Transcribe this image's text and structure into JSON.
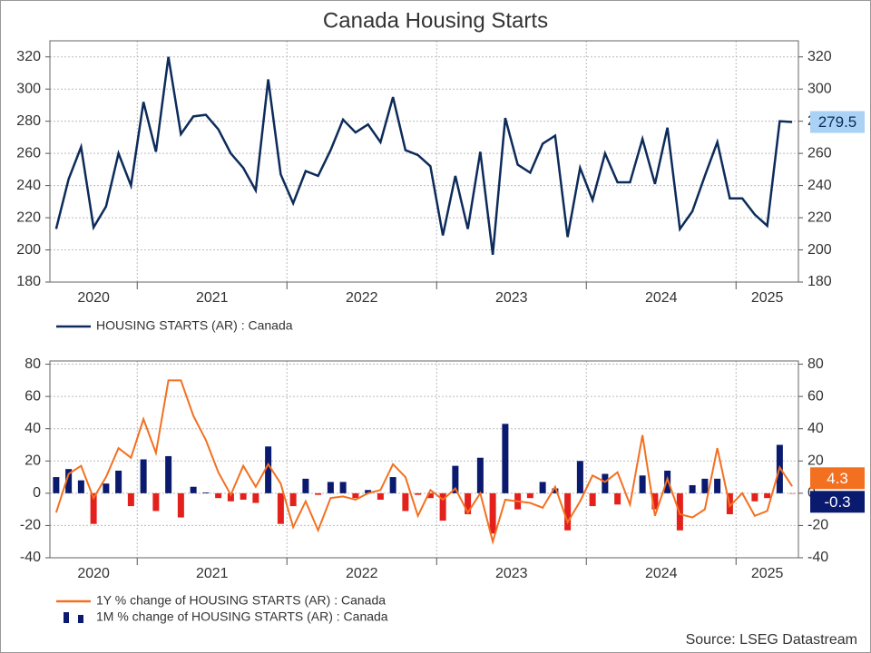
{
  "title": "Canada Housing Starts",
  "source": "Source: LSEG Datastream",
  "chart_data": [
    {
      "type": "line",
      "x": [
        "2020",
        "2020",
        "2020",
        "2020",
        "2020",
        "2020",
        "2020",
        "2021",
        "2021",
        "2021",
        "2021",
        "2021",
        "2021",
        "2021",
        "2021",
        "2021",
        "2021",
        "2021",
        "2021",
        "2022",
        "2022",
        "2022",
        "2022",
        "2022",
        "2022",
        "2022",
        "2022",
        "2022",
        "2022",
        "2022",
        "2022",
        "2023",
        "2023",
        "2023",
        "2023",
        "2023",
        "2023",
        "2023",
        "2023",
        "2023",
        "2023",
        "2023",
        "2023",
        "2024",
        "2024",
        "2024",
        "2024",
        "2024",
        "2024",
        "2024",
        "2024",
        "2024",
        "2024",
        "2024",
        "2024",
        "2025",
        "2025",
        "2025",
        "2025",
        "2025"
      ],
      "series": [
        {
          "name": "HOUSING STARTS (AR) : Canada",
          "color": "#0d2b5a",
          "label_bg": "#a9d2f5",
          "label_color": "#0d2b5a",
          "values": [
            213,
            244,
            264,
            214,
            227,
            260,
            240,
            292,
            261,
            320,
            272,
            283,
            284,
            275,
            260,
            251,
            237,
            306,
            247,
            229,
            249,
            246,
            262,
            281,
            273,
            278,
            267,
            295,
            262,
            259,
            252,
            209,
            246,
            213,
            261,
            197,
            282,
            253,
            248,
            266,
            271,
            208,
            251,
            231,
            260,
            242,
            242,
            269,
            241,
            276,
            213,
            224,
            246,
            267,
            232,
            232,
            222,
            215,
            280,
            279.5
          ]
        }
      ],
      "ylim": [
        180,
        330
      ],
      "yticks": [
        180,
        200,
        220,
        240,
        260,
        280,
        300,
        320
      ],
      "grid": true
    },
    {
      "type": "bar_line",
      "x": [
        "2020",
        "2020",
        "2020",
        "2020",
        "2020",
        "2020",
        "2020",
        "2021",
        "2021",
        "2021",
        "2021",
        "2021",
        "2021",
        "2021",
        "2021",
        "2021",
        "2021",
        "2021",
        "2021",
        "2022",
        "2022",
        "2022",
        "2022",
        "2022",
        "2022",
        "2022",
        "2022",
        "2022",
        "2022",
        "2022",
        "2022",
        "2023",
        "2023",
        "2023",
        "2023",
        "2023",
        "2023",
        "2023",
        "2023",
        "2023",
        "2023",
        "2023",
        "2023",
        "2024",
        "2024",
        "2024",
        "2024",
        "2024",
        "2024",
        "2024",
        "2024",
        "2024",
        "2024",
        "2024",
        "2024",
        "2025",
        "2025",
        "2025",
        "2025",
        "2025"
      ],
      "series": [
        {
          "name": "1Y % change of HOUSING STARTS (AR) : Canada",
          "kind": "line",
          "color": "#f37021",
          "label_bg": "#f37021",
          "label_color": "#ffffff",
          "values": [
            -12,
            12,
            17,
            -3,
            10,
            28,
            22,
            46,
            25,
            70,
            70,
            48,
            33,
            13,
            -1,
            17,
            4,
            18,
            6,
            -21,
            -5,
            -23,
            -3,
            -2,
            -4,
            0,
            2,
            18,
            10,
            -14,
            2,
            -4,
            3,
            -12,
            0,
            -30,
            -4,
            -5,
            -6,
            -9,
            4,
            -18,
            -5,
            11,
            7,
            13,
            -7,
            36,
            -14,
            9,
            -13,
            -15,
            -10,
            28,
            -8,
            0,
            -14,
            -11,
            16,
            4.3
          ]
        },
        {
          "name": "1M % change of HOUSING STARTS (AR) : Canada",
          "kind": "bar",
          "color": "#0a1a6e",
          "negative_color": "#e3201b",
          "label_bg": "#0a1a6e",
          "label_color": "#ffffff",
          "values": [
            10,
            15,
            8,
            -19,
            6,
            14,
            -8,
            21,
            -11,
            23,
            -15,
            4,
            0.5,
            -3,
            -5,
            -4,
            -6,
            29,
            -19,
            -8,
            9,
            -1,
            7,
            7,
            -3,
            2,
            -4,
            10,
            -11,
            -1,
            -3,
            -17,
            17,
            -13,
            22,
            -25,
            43,
            -10,
            -3,
            7,
            3,
            -23,
            20,
            -8,
            12,
            -7,
            0,
            11,
            -10,
            14,
            -23,
            5,
            9,
            9,
            -13,
            0,
            -5,
            -3,
            30,
            -0.3
          ]
        }
      ],
      "ylim": [
        -40,
        82
      ],
      "yticks": [
        -40,
        -20,
        0,
        20,
        40,
        60,
        80
      ],
      "grid": true
    }
  ]
}
